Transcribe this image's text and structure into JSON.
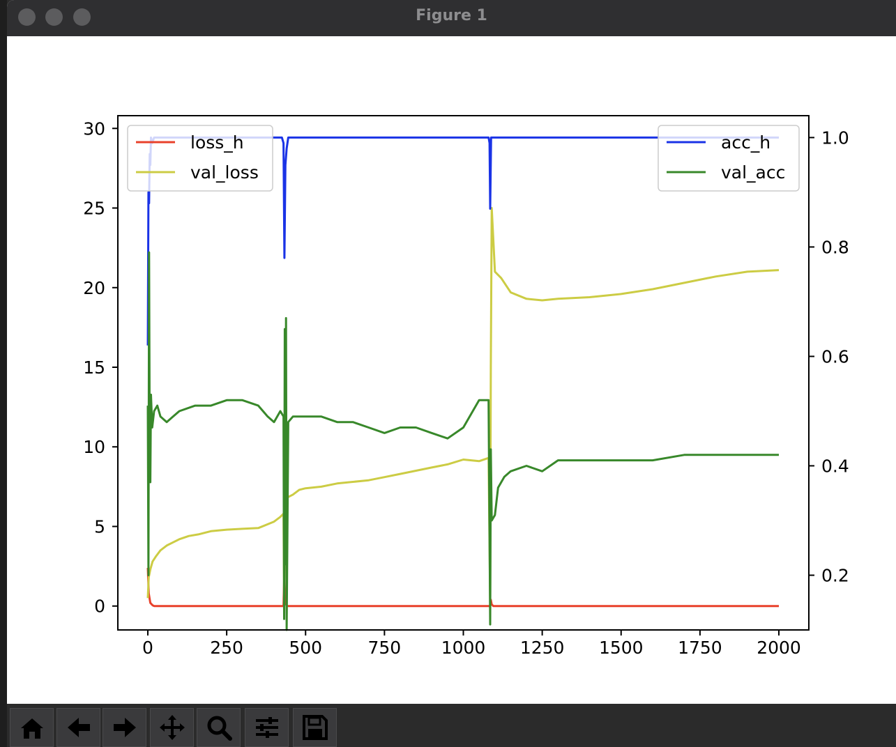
{
  "window": {
    "title": "Figure 1"
  },
  "toolbar": {
    "buttons": [
      {
        "name": "home-button",
        "icon": "home-icon"
      },
      {
        "name": "back-button",
        "icon": "arrow-left-icon"
      },
      {
        "name": "forward-button",
        "icon": "arrow-right-icon"
      },
      {
        "name": "pan-button",
        "icon": "move-icon"
      },
      {
        "name": "zoom-button",
        "icon": "magnifier-icon"
      },
      {
        "name": "configure-subplots-button",
        "icon": "sliders-icon"
      },
      {
        "name": "save-button",
        "icon": "floppy-disk-icon"
      }
    ]
  },
  "chart_data": {
    "type": "line",
    "title": "",
    "xlabel": "",
    "ylabel": "",
    "xlim": [
      -95,
      2095
    ],
    "ylim_left": [
      -1.5,
      30.8
    ],
    "ylim_right": [
      0.1,
      1.04
    ],
    "grid": false,
    "x_ticks": [
      0,
      250,
      500,
      750,
      1000,
      1250,
      1500,
      1750,
      2000
    ],
    "x_tick_labels": [
      "0",
      "250",
      "500",
      "750",
      "1000",
      "1250",
      "1500",
      "1750",
      "2000"
    ],
    "y_left_ticks": [
      0,
      5,
      10,
      15,
      20,
      25,
      30
    ],
    "y_left_tick_labels": [
      "0",
      "5",
      "10",
      "15",
      "20",
      "25",
      "30"
    ],
    "y_right_ticks": [
      0.2,
      0.4,
      0.6,
      0.8,
      1.0
    ],
    "y_right_tick_labels": [
      "0.2",
      "0.4",
      "0.6",
      "0.8",
      "1.0"
    ],
    "legend_left": {
      "position": "top-left",
      "entries": [
        "loss_h",
        "val_loss"
      ]
    },
    "legend_right": {
      "position": "top-right",
      "entries": [
        "acc_h",
        "val_acc"
      ]
    },
    "series": [
      {
        "name": "loss_h",
        "axis": "left",
        "color": "#e8412b",
        "x": [
          0,
          3,
          8,
          15,
          20,
          430,
          432,
          435,
          440,
          1085,
          1087,
          1090,
          1095,
          2000
        ],
        "y": [
          2.4,
          0.8,
          0.2,
          0.05,
          0.0,
          0.0,
          1.6,
          0.3,
          0.0,
          0.0,
          0.4,
          0.1,
          0.0,
          0.0
        ]
      },
      {
        "name": "val_loss",
        "axis": "left",
        "color": "#cccc44",
        "x": [
          0,
          3,
          8,
          15,
          25,
          40,
          60,
          80,
          100,
          130,
          160,
          200,
          250,
          300,
          350,
          400,
          420,
          430,
          432,
          435,
          440,
          460,
          480,
          500,
          550,
          600,
          650,
          700,
          750,
          800,
          850,
          900,
          950,
          1000,
          1050,
          1080,
          1085,
          1087,
          1090,
          1100,
          1120,
          1150,
          1200,
          1250,
          1300,
          1400,
          1500,
          1600,
          1700,
          1800,
          1900,
          2000
        ],
        "y": [
          0.5,
          1.8,
          2.3,
          2.8,
          3.1,
          3.5,
          3.8,
          4.0,
          4.2,
          4.4,
          4.5,
          4.7,
          4.8,
          4.85,
          4.9,
          5.3,
          5.6,
          5.8,
          0.5,
          6.6,
          6.8,
          7.0,
          7.3,
          7.4,
          7.5,
          7.7,
          7.8,
          7.9,
          8.1,
          8.3,
          8.5,
          8.7,
          8.9,
          9.2,
          9.1,
          9.3,
          0.3,
          15.0,
          25.0,
          21.0,
          20.6,
          19.7,
          19.3,
          19.2,
          19.3,
          19.4,
          19.6,
          19.9,
          20.3,
          20.7,
          21.0,
          21.1
        ]
      },
      {
        "name": "acc_h",
        "axis": "right",
        "color": "#1a33e6",
        "x": [
          0,
          2,
          4,
          6,
          8,
          10,
          14,
          20,
          425,
          430,
          433,
          436,
          440,
          445,
          1080,
          1083,
          1085,
          1088,
          1092,
          2000
        ],
        "y": [
          0.62,
          0.9,
          0.88,
          0.97,
          0.95,
          1.0,
          0.99,
          1.0,
          1.0,
          0.99,
          0.78,
          0.95,
          0.98,
          1.0,
          1.0,
          0.99,
          0.87,
          1.0,
          1.0,
          1.0
        ]
      },
      {
        "name": "val_acc",
        "axis": "right",
        "color": "#38882a",
        "x": [
          0,
          2,
          4,
          6,
          8,
          10,
          14,
          20,
          30,
          40,
          60,
          80,
          100,
          150,
          200,
          250,
          300,
          350,
          380,
          400,
          420,
          430,
          432,
          434,
          436,
          438,
          440,
          445,
          460,
          480,
          500,
          550,
          600,
          650,
          700,
          750,
          800,
          850,
          900,
          950,
          1000,
          1050,
          1080,
          1085,
          1087,
          1090,
          1100,
          1110,
          1130,
          1150,
          1200,
          1250,
          1300,
          1400,
          1500,
          1600,
          1700,
          1750,
          1800,
          1850,
          1900,
          1950,
          2000
        ],
        "y": [
          0.51,
          0.2,
          0.79,
          0.43,
          0.37,
          0.53,
          0.47,
          0.5,
          0.51,
          0.49,
          0.48,
          0.49,
          0.5,
          0.51,
          0.51,
          0.52,
          0.52,
          0.51,
          0.49,
          0.48,
          0.5,
          0.49,
          0.12,
          0.65,
          0.22,
          0.67,
          0.1,
          0.48,
          0.49,
          0.49,
          0.49,
          0.49,
          0.48,
          0.48,
          0.47,
          0.46,
          0.47,
          0.47,
          0.46,
          0.45,
          0.47,
          0.52,
          0.52,
          0.11,
          0.43,
          0.3,
          0.31,
          0.36,
          0.38,
          0.39,
          0.4,
          0.39,
          0.41,
          0.41,
          0.41,
          0.41,
          0.42,
          0.42,
          0.42,
          0.42,
          0.42,
          0.42,
          0.42
        ]
      }
    ]
  }
}
